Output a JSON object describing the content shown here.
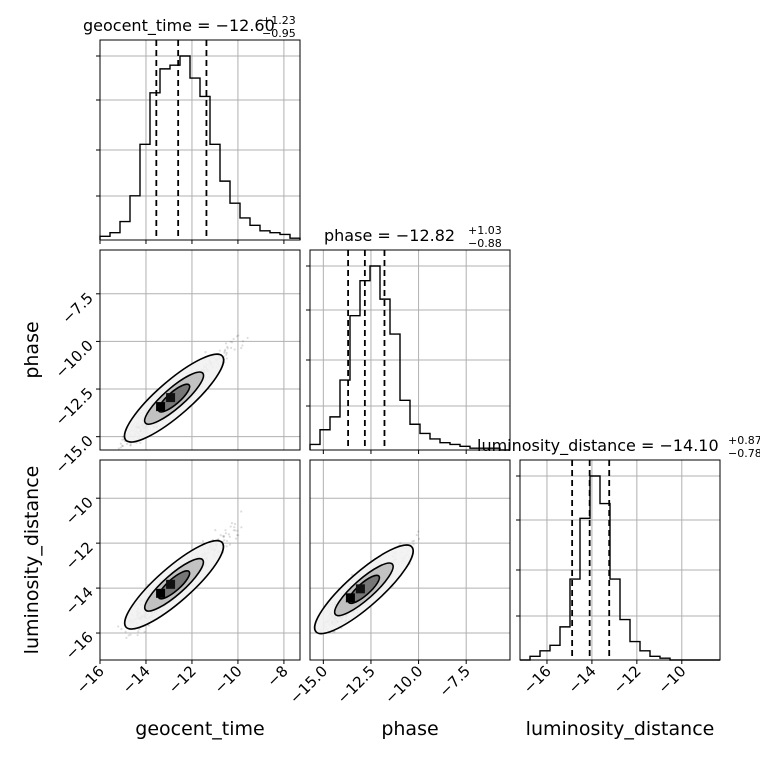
{
  "chart_data": {
    "type": "corner",
    "parameters": [
      "geocent_time",
      "phase",
      "luminosity_distance"
    ],
    "titles": [
      {
        "main": "geocent_time = −12.60",
        "upper": "+1.23",
        "lower": "−0.95"
      },
      {
        "main": "phase = −12.82",
        "upper": "+1.03",
        "lower": "−0.88"
      },
      {
        "main": "luminosity_distance = −14.10",
        "upper": "+0.87",
        "lower": "−0.78"
      }
    ],
    "axis_labels": {
      "bottom": [
        "geocent_time",
        "phase",
        "luminosity_distance"
      ],
      "left": [
        "phase",
        "luminosity_distance"
      ]
    },
    "ranges": [
      [
        -16.0,
        -7.3
      ],
      [
        -15.7,
        -5.2
      ],
      [
        -17.2,
        -8.3
      ]
    ],
    "x_ticks": [
      {
        "values": [
          -16,
          -14,
          -12,
          -10,
          -8
        ],
        "labels": [
          "−16",
          "−14",
          "−12",
          "−10",
          "−8"
        ]
      },
      {
        "values": [
          -15.0,
          -12.5,
          -10.0,
          -7.5
        ],
        "labels": [
          "−15.0",
          "−12.5",
          "−10.0",
          "−7.5"
        ]
      },
      {
        "values": [
          -16,
          -14,
          -12,
          -10
        ],
        "labels": [
          "−16",
          "−14",
          "−12",
          "−10"
        ]
      }
    ],
    "y_ticks": [
      {
        "values": [
          -15.0,
          -12.5,
          -10.0,
          -7.5
        ],
        "labels": [
          "−15.0",
          "−12.5",
          "−10.0",
          "−7.5"
        ]
      },
      {
        "values": [
          -16,
          -14,
          -12,
          -10
        ],
        "labels": [
          "−16",
          "−14",
          "−12",
          "−10"
        ]
      }
    ],
    "quantiles": [
      [
        -13.55,
        -12.6,
        -11.37
      ],
      [
        -13.7,
        -12.82,
        -11.79
      ],
      [
        -14.88,
        -14.1,
        -13.23
      ]
    ],
    "histograms": [
      {
        "edges_start": -16.0,
        "bin_width": 0.435,
        "counts": [
          2,
          4,
          10,
          24,
          52,
          80,
          93,
          95,
          100,
          88,
          78,
          52,
          32,
          20,
          12,
          8,
          5,
          4,
          3,
          1
        ]
      },
      {
        "edges_start": -15.7,
        "bin_width": 0.525,
        "counts": [
          3,
          11,
          18,
          38,
          73,
          92,
          100,
          82,
          63,
          27,
          14,
          9,
          6,
          4,
          3,
          2,
          1,
          1,
          1,
          0
        ]
      },
      {
        "edges_start": -17.2,
        "bin_width": 0.445,
        "counts": [
          0,
          2,
          5,
          8,
          18,
          44,
          77,
          100,
          85,
          44,
          22,
          10,
          5,
          2,
          1,
          0,
          0,
          0,
          0,
          0
        ]
      }
    ],
    "pairs": [
      {
        "x_param": 0,
        "y_param": 1,
        "center": [
          -13.3,
          -13.5
        ],
        "slope": 1.05
      },
      {
        "x_param": 0,
        "y_param": 2,
        "center": [
          -13.3,
          -14.3
        ],
        "slope": 0.9
      },
      {
        "x_param": 1,
        "y_param": 2,
        "center": [
          -13.5,
          -14.5
        ],
        "slope": 0.75
      }
    ],
    "grid": true,
    "colors": {
      "line": "#000000",
      "grid": "#b0b0b0",
      "points": "#444444",
      "background": "#ffffff"
    }
  }
}
